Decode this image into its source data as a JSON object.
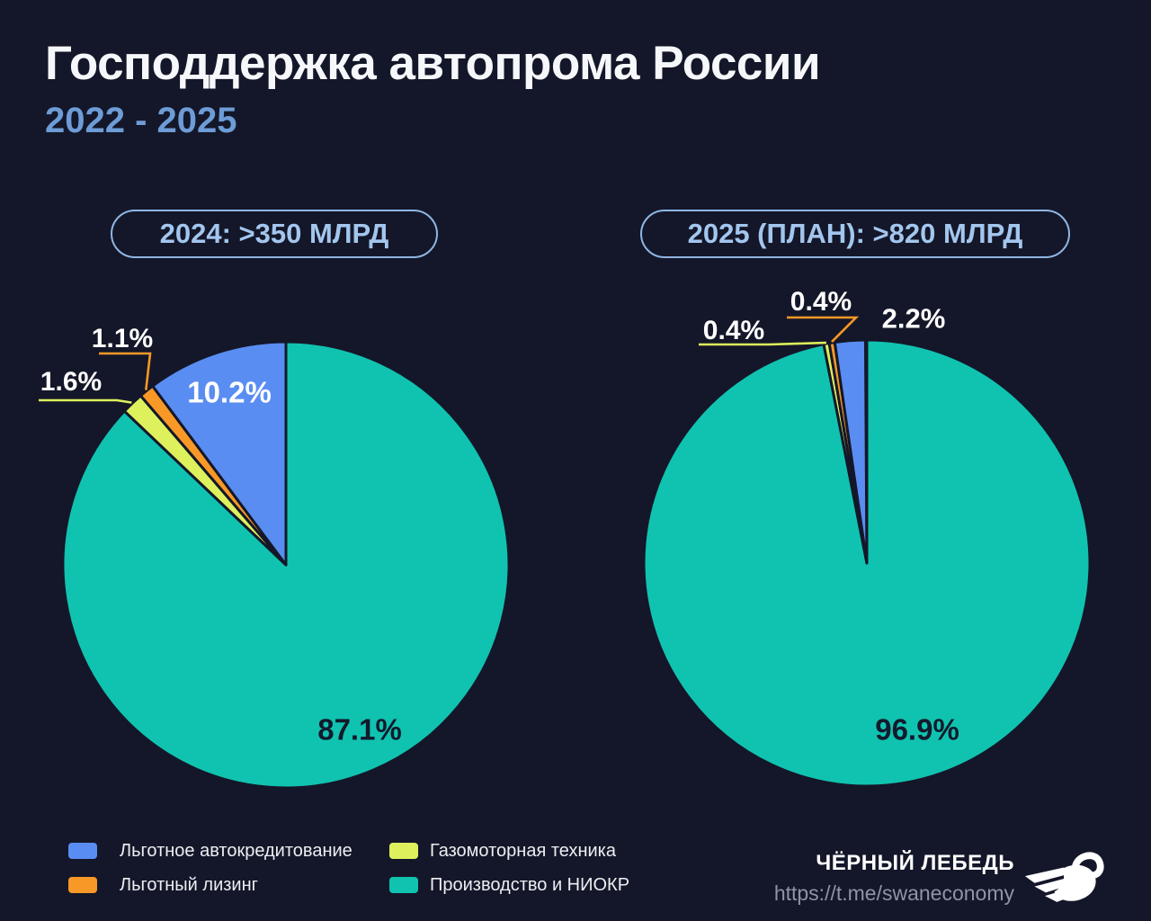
{
  "header": {
    "title": "Господдержка автопрома России",
    "subtitle": "2022 - 2025"
  },
  "chart_data": [
    {
      "type": "pie",
      "title": "2024: >350 МЛРД",
      "values_unit": "percent",
      "start_angle": "12-oclock",
      "direction": "clockwise",
      "slices": [
        {
          "label": "Производство и НИОКР",
          "value": 87.1,
          "color": "#10c3b0"
        },
        {
          "label": "Газомоторная техника",
          "value": 1.6,
          "color": "#def15c"
        },
        {
          "label": "Льготный лизинг",
          "value": 1.1,
          "color": "#f89827"
        },
        {
          "label": "Льготное автокредитование",
          "value": 10.2,
          "color": "#5a8df2"
        }
      ]
    },
    {
      "type": "pie",
      "title": "2025 (ПЛАН): >820 МЛРД",
      "values_unit": "percent",
      "start_angle": "12-oclock",
      "direction": "clockwise",
      "slices": [
        {
          "label": "Производство и НИОКР",
          "value": 96.9,
          "color": "#10c3b0"
        },
        {
          "label": "Газомоторная техника",
          "value": 0.4,
          "color": "#def15c"
        },
        {
          "label": "Льготный лизинг",
          "value": 0.4,
          "color": "#f89827"
        },
        {
          "label": "Льготное автокредитование",
          "value": 2.2,
          "color": "#5a8df2"
        }
      ]
    }
  ],
  "legend": [
    {
      "label": "Льготное автокредитование",
      "color": "#5a8df2"
    },
    {
      "label": "Льготный лизинг",
      "color": "#f89827"
    },
    {
      "label": "Газомоторная техника",
      "color": "#def15c"
    },
    {
      "label": "Производство и НИОКР",
      "color": "#10c3b0"
    }
  ],
  "footer": {
    "brand": "ЧЁРНЫЙ ЛЕБЕДЬ",
    "url": "https://t.me/swaneconomy"
  },
  "colors": {
    "background": "#141729",
    "title_text": "#f6f7fa",
    "subtitle_text": "#6d9cd6",
    "pill_text": "#a3c6ee",
    "dark_label": "#131a2c",
    "light_label": "#ffffff"
  }
}
